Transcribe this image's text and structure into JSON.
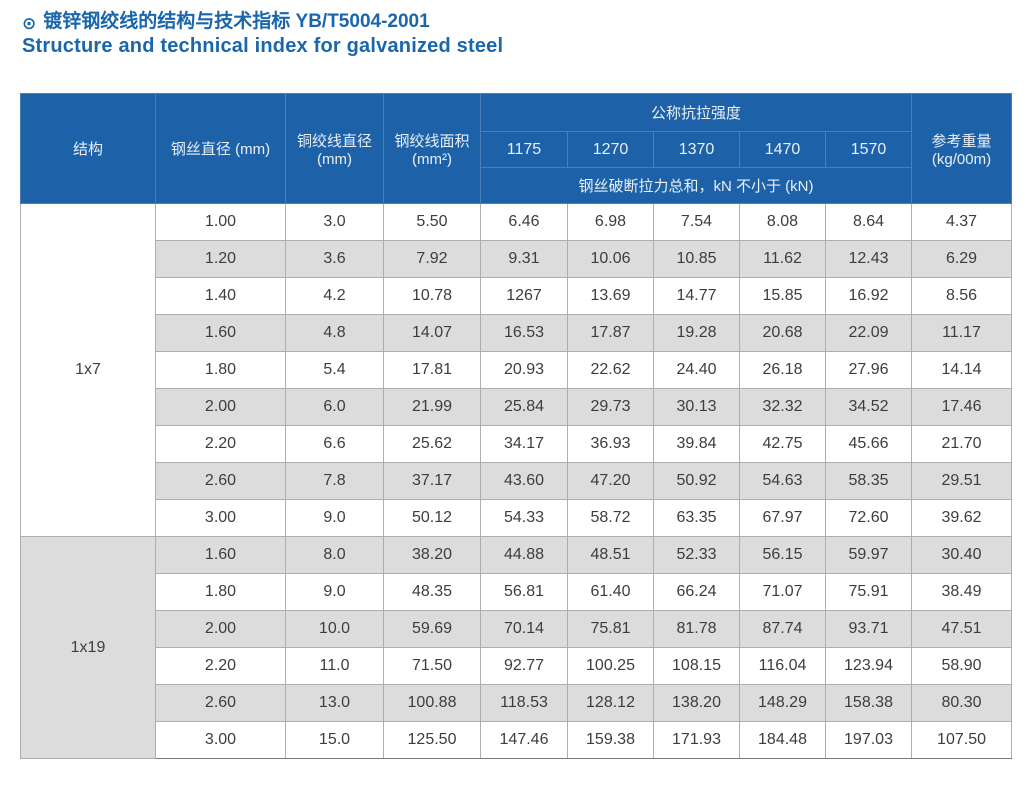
{
  "page": {
    "bullet": "⊙",
    "title_zh": "镀锌钢绞线的结构与技术指标 YB/T5004-2001",
    "title_en": "Structure and technical index for galvanized steel"
  },
  "colors": {
    "title_blue": "#1a66ad",
    "header_blue": "#1d61a8",
    "header_border_blue": "#4a7fb8",
    "stripe_gray": "#dcdcdc",
    "cell_border_gray": "#aeaeae",
    "data_text": "#3d3d3d"
  },
  "table": {
    "headers": {
      "structure": "结构",
      "wire_diameter": "钢丝直径 (mm)",
      "strand_diameter_line1": "铜绞线直径",
      "strand_diameter_line2": "(mm)",
      "strand_area_line1": "钢绞线面积",
      "strand_area_line2": "(mm²)",
      "tensile_group": "公称抗拉强度",
      "tensile_values": [
        "1175",
        "1270",
        "1370",
        "1470",
        "1570"
      ],
      "breaking_note": "钢丝破断拉力总和，kN 不小于 (kN)",
      "ref_weight_line1": "参考重量",
      "ref_weight_line2": "(kg/00m)"
    },
    "sections": [
      {
        "structure": "1x7",
        "rows": [
          [
            "1.00",
            "3.0",
            "5.50",
            "6.46",
            "6.98",
            "7.54",
            "8.08",
            "8.64",
            "4.37"
          ],
          [
            "1.20",
            "3.6",
            "7.92",
            "9.31",
            "10.06",
            "10.85",
            "11.62",
            "12.43",
            "6.29"
          ],
          [
            "1.40",
            "4.2",
            "10.78",
            "1267",
            "13.69",
            "14.77",
            "15.85",
            "16.92",
            "8.56"
          ],
          [
            "1.60",
            "4.8",
            "14.07",
            "16.53",
            "17.87",
            "19.28",
            "20.68",
            "22.09",
            "11.17"
          ],
          [
            "1.80",
            "5.4",
            "17.81",
            "20.93",
            "22.62",
            "24.40",
            "26.18",
            "27.96",
            "14.14"
          ],
          [
            "2.00",
            "6.0",
            "21.99",
            "25.84",
            "29.73",
            "30.13",
            "32.32",
            "34.52",
            "17.46"
          ],
          [
            "2.20",
            "6.6",
            "25.62",
            "34.17",
            "36.93",
            "39.84",
            "42.75",
            "45.66",
            "21.70"
          ],
          [
            "2.60",
            "7.8",
            "37.17",
            "43.60",
            "47.20",
            "50.92",
            "54.63",
            "58.35",
            "29.51"
          ],
          [
            "3.00",
            "9.0",
            "50.12",
            "54.33",
            "58.72",
            "63.35",
            "67.97",
            "72.60",
            "39.62"
          ]
        ]
      },
      {
        "structure": "1x19",
        "rows": [
          [
            "1.60",
            "8.0",
            "38.20",
            "44.88",
            "48.51",
            "52.33",
            "56.15",
            "59.97",
            "30.40"
          ],
          [
            "1.80",
            "9.0",
            "48.35",
            "56.81",
            "61.40",
            "66.24",
            "71.07",
            "75.91",
            "38.49"
          ],
          [
            "2.00",
            "10.0",
            "59.69",
            "70.14",
            "75.81",
            "81.78",
            "87.74",
            "93.71",
            "47.51"
          ],
          [
            "2.20",
            "11.0",
            "71.50",
            "92.77",
            "100.25",
            "108.15",
            "116.04",
            "123.94",
            "58.90"
          ],
          [
            "2.60",
            "13.0",
            "100.88",
            "118.53",
            "128.12",
            "138.20",
            "148.29",
            "158.38",
            "80.30"
          ],
          [
            "3.00",
            "15.0",
            "125.50",
            "147.46",
            "159.38",
            "171.93",
            "184.48",
            "197.03",
            "107.50"
          ]
        ]
      }
    ]
  }
}
